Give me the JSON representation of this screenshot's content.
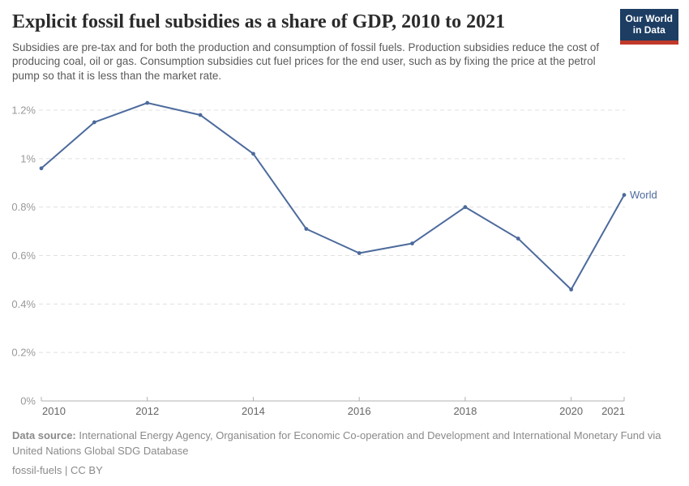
{
  "header": {
    "title": "Explicit fossil fuel subsidies as a share of GDP, 2010 to 2021",
    "subtitle": "Subsidies are pre-tax and for both the production and consumption of fossil fuels. Production subsidies reduce the cost of producing coal, oil or gas. Consumption subsidies cut fuel prices for the end user, such as by fixing the price at the petrol pump so that it is less than the market rate.",
    "logo": {
      "line1": "Our World",
      "line2": "in Data",
      "bg_color": "#1d3d63",
      "accent_color": "#c0392b"
    }
  },
  "chart_data": {
    "type": "line",
    "title": "Explicit fossil fuel subsidies as a share of GDP, 2010 to 2021",
    "unit": "% of GDP",
    "x": [
      2010,
      2011,
      2012,
      2013,
      2014,
      2015,
      2016,
      2017,
      2018,
      2019,
      2020,
      2021
    ],
    "series": [
      {
        "name": "World",
        "color": "#4c6a9c",
        "values": [
          0.96,
          1.15,
          1.23,
          1.18,
          1.02,
          0.71,
          0.61,
          0.65,
          0.8,
          0.67,
          0.46,
          0.85
        ]
      }
    ],
    "xlim": [
      2010,
      2021
    ],
    "ylim": [
      0,
      1.2
    ],
    "x_ticks": [
      2010,
      2012,
      2014,
      2016,
      2018,
      2020,
      2021
    ],
    "y_ticks": [
      0,
      0.2,
      0.4,
      0.6,
      0.8,
      1,
      1.2
    ],
    "y_tick_labels": [
      "0%",
      "0.2%",
      "0.4%",
      "0.6%",
      "0.8%",
      "1%",
      "1.2%"
    ],
    "grid": "horizontal-dashed",
    "legend_position": "end-of-line-label",
    "end_label": "World",
    "colors": {
      "gridline": "#e0e0e0",
      "axis": "#b0b0b0",
      "y_tick_label": "#999999",
      "x_tick_label": "#666666"
    }
  },
  "footer": {
    "source_label": "Data source:",
    "source_text": "International Energy Agency, Organisation for Economic Co-operation and Development and International Monetary Fund via United Nations Global SDG Database",
    "slug": "fossil-fuels",
    "separator": " | ",
    "license": "CC BY"
  }
}
